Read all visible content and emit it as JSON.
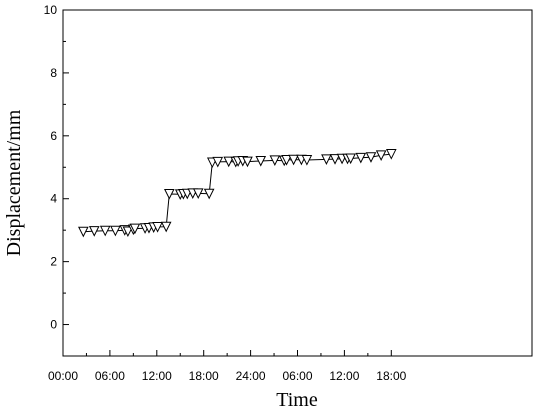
{
  "chart_data": {
    "type": "line",
    "title": "",
    "xlabel": "Time",
    "ylabel": "Displacement/mm",
    "xlim": [
      0,
      60
    ],
    "ylim": [
      -1,
      10
    ],
    "grid": false,
    "legend": "none",
    "marker": "open-down-triangle",
    "line_color": "#000000",
    "x_ticks": [
      {
        "value": 0,
        "label": "00:00"
      },
      {
        "value": 6,
        "label": "06:00"
      },
      {
        "value": 12,
        "label": "12:00"
      },
      {
        "value": 18,
        "label": "18:00"
      },
      {
        "value": 24,
        "label": "24:00"
      },
      {
        "value": 30,
        "label": "06:00"
      },
      {
        "value": 36,
        "label": "12:00"
      },
      {
        "value": 42,
        "label": "18:00"
      }
    ],
    "y_ticks": [
      {
        "value": 0,
        "label": "0"
      },
      {
        "value": 2,
        "label": "2"
      },
      {
        "value": 4,
        "label": "4"
      },
      {
        "value": 6,
        "label": "6"
      },
      {
        "value": 8,
        "label": "8"
      },
      {
        "value": 10,
        "label": "10"
      }
    ],
    "series": [
      {
        "x": [
          2.6,
          4.0,
          5.4,
          6.7,
          7.9,
          8.3,
          9.0,
          9.2,
          10.5,
          11.0,
          11.6,
          12.1,
          13.2,
          13.6,
          15.0,
          15.4,
          15.9,
          16.6,
          17.3,
          18.7,
          19.1,
          19.8,
          21.2,
          22.1,
          22.4,
          23.0,
          23.6,
          25.3,
          27.1,
          28.3,
          28.6,
          29.5,
          30.5,
          31.2,
          33.7,
          34.8,
          35.7,
          36.4,
          36.8,
          38.1,
          39.4,
          40.7,
          42.0
        ],
        "y": [
          2.95,
          2.97,
          2.98,
          2.98,
          3.0,
          2.96,
          3.02,
          3.05,
          3.06,
          3.07,
          3.09,
          3.1,
          3.11,
          4.15,
          4.14,
          4.15,
          4.16,
          4.17,
          4.17,
          4.16,
          5.15,
          5.17,
          5.18,
          5.17,
          5.19,
          5.2,
          5.18,
          5.2,
          5.22,
          5.21,
          5.23,
          5.24,
          5.24,
          5.23,
          5.25,
          5.26,
          5.27,
          5.27,
          5.28,
          5.3,
          5.32,
          5.38,
          5.42
        ]
      }
    ]
  }
}
